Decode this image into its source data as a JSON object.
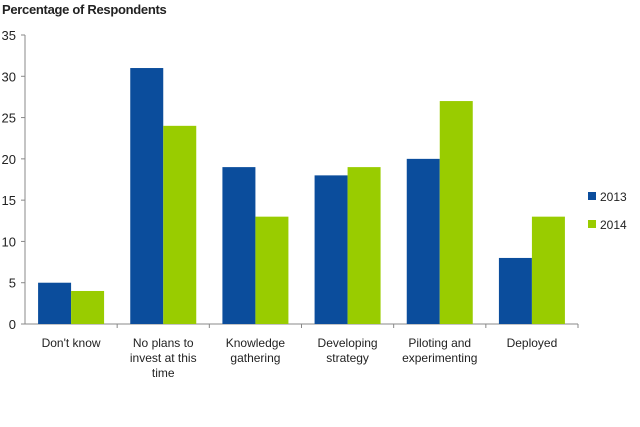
{
  "chart_data": {
    "type": "bar",
    "title": "Percentage of Respondents",
    "xlabel": "",
    "ylabel": "Percentage of Respondents",
    "ylim": [
      0,
      35
    ],
    "yticks": [
      0,
      5,
      10,
      15,
      20,
      25,
      30,
      35
    ],
    "grid": false,
    "legend_position": "right",
    "categories": [
      [
        "Don't know"
      ],
      [
        "No plans to",
        "invest at this",
        "time"
      ],
      [
        "Knowledge",
        "gathering"
      ],
      [
        "Developing",
        "strategy"
      ],
      [
        "Piloting and",
        "experimenting"
      ],
      [
        "Deployed"
      ]
    ],
    "series": [
      {
        "name": "2013",
        "color": "#0b4d9c",
        "values": [
          5,
          31,
          19,
          18,
          20,
          8
        ]
      },
      {
        "name": "2014",
        "color": "#99cc00",
        "values": [
          4,
          24,
          13,
          19,
          27,
          13
        ]
      }
    ]
  }
}
